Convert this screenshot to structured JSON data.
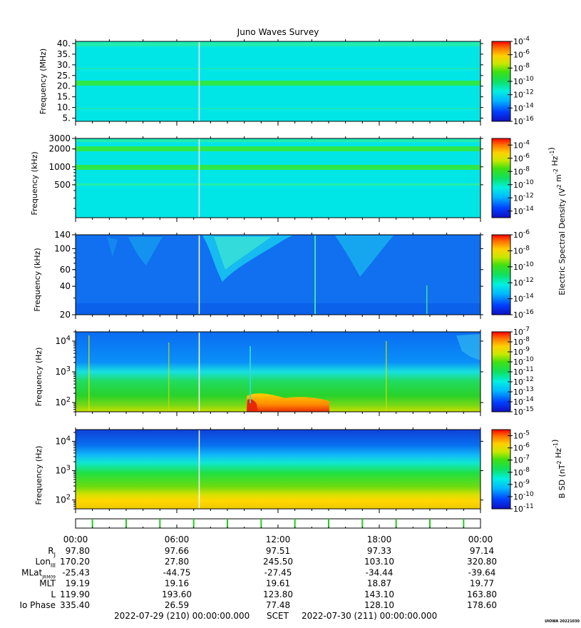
{
  "title": "Juno Waves Survey",
  "credit": "UIOWA 20221030",
  "colors": {
    "background_low": "#00e6e6",
    "band_strong": "#2de84a",
    "band_weak": "#33f08a",
    "marker_white": "#ffffff",
    "orbit_tick_green": "#22cc22"
  },
  "chart_data": [
    {
      "type": "heatmap",
      "id": "panel-1",
      "ylabel": "Frequency (MHz)",
      "yscale": "linear",
      "ylim": [
        3.5,
        41
      ],
      "yticks": [
        "40.",
        "35.",
        "30.",
        "25.",
        "20.",
        "15.",
        "10.",
        "5."
      ],
      "ytick_values": [
        40,
        35,
        30,
        25,
        20,
        15,
        10,
        5
      ],
      "bands": [
        21
      ],
      "colorbar": {
        "scale": "log",
        "range_exp": [
          -16,
          -4
        ],
        "ticks": [
          "10^-4",
          "10^-6",
          "10^-8",
          "10^-10",
          "10^-12",
          "10^-14",
          "10^-16"
        ],
        "tick_exp": [
          -4,
          -6,
          -8,
          -10,
          -12,
          -14,
          -16
        ]
      }
    },
    {
      "type": "heatmap",
      "id": "panel-2",
      "ylabel": "Frequency (kHz)",
      "yscale": "log",
      "ylim": [
        140,
        3000
      ],
      "yticks": [
        "3000",
        "2000",
        "1000",
        "500"
      ],
      "ytick_values": [
        3000,
        2000,
        1000,
        500
      ],
      "bands": [
        2000,
        1000
      ],
      "colorbar": {
        "scale": "log",
        "range_exp": [
          -15,
          -3
        ],
        "ticks": [
          "10^-4",
          "10^-6",
          "10^-8",
          "10^-10",
          "10^-12",
          "10^-14"
        ],
        "tick_exp": [
          -4,
          -6,
          -8,
          -10,
          -12,
          -14
        ]
      }
    },
    {
      "type": "heatmap",
      "id": "panel-3",
      "ylabel": "Frequency (kHz)",
      "yscale": "log",
      "ylim": [
        20,
        140
      ],
      "yticks": [
        "140",
        "100",
        "60",
        "40",
        "20"
      ],
      "ytick_values": [
        140,
        100,
        60,
        40,
        20
      ],
      "bands": [],
      "colorbar": {
        "scale": "log",
        "range_exp": [
          -16,
          -6
        ],
        "ticks": [
          "10^-6",
          "10^-8",
          "10^-10",
          "10^-12",
          "10^-14",
          "10^-16"
        ],
        "tick_exp": [
          -6,
          -8,
          -10,
          -12,
          -14,
          -16
        ]
      }
    },
    {
      "type": "heatmap",
      "id": "panel-4",
      "ylabel": "Frequency (Hz)",
      "yscale": "log",
      "ylim": [
        50,
        20000
      ],
      "yticks": [
        "10^4",
        "10^3",
        "10^2"
      ],
      "ytick_values": [
        10000,
        1000,
        100
      ],
      "bands": [],
      "colorbar": {
        "scale": "log",
        "range_exp": [
          -15,
          -7
        ],
        "ticks": [
          "10^-7",
          "10^-8",
          "10^-9",
          "10^-10",
          "10^-11",
          "10^-12",
          "10^-13",
          "10^-14",
          "10^-15"
        ],
        "tick_exp": [
          -7,
          -8,
          -9,
          -10,
          -11,
          -12,
          -13,
          -14,
          -15
        ]
      }
    },
    {
      "type": "heatmap",
      "id": "panel-5",
      "ylabel": "Frequency (Hz)",
      "yscale": "log",
      "ylim": [
        50,
        25000
      ],
      "yticks": [
        "10^4",
        "10^3",
        "10^2"
      ],
      "ytick_values": [
        10000,
        1000,
        100
      ],
      "bands": [],
      "colorbar": {
        "scale": "log",
        "range_exp": [
          -11,
          -4.5
        ],
        "ticks": [
          "10^-5",
          "10^-6",
          "10^-7",
          "10^-8",
          "10^-9",
          "10^-10",
          "10^-11"
        ],
        "tick_exp": [
          -5,
          -6,
          -7,
          -8,
          -9,
          -10,
          -11
        ]
      }
    }
  ],
  "colorbar_labels": {
    "electric": "Electric Spectral Density (V^2 m^-2 Hz^-1)",
    "magnetic": "B SD (nT^2 Hz^-1)"
  },
  "xaxis": {
    "range_hours": [
      0,
      24
    ],
    "ticks": [
      "00:00",
      "06:00",
      "12:00",
      "18:00",
      "00:00"
    ],
    "tick_hours": [
      0,
      6,
      12,
      18,
      24
    ],
    "marker_hour": 7.33
  },
  "ephemeris": {
    "rows": [
      {
        "label": "R",
        "sub": "J",
        "values": [
          "97.80",
          "97.66",
          "97.51",
          "97.33",
          "97.14"
        ]
      },
      {
        "label": "Lon",
        "sub": "III",
        "values": [
          "170.20",
          "27.80",
          "245.50",
          "103.10",
          "320.80"
        ]
      },
      {
        "label": "MLat",
        "sub": "JRM09",
        "values": [
          "-25.43",
          "-44.75",
          "-27.45",
          "-34.44",
          "-39.64"
        ]
      },
      {
        "label": "MLT",
        "sub": "",
        "values": [
          "19.19",
          "19.16",
          "19.61",
          "18.87",
          "19.77"
        ]
      },
      {
        "label": "L",
        "sub": "",
        "values": [
          "119.90",
          "193.60",
          "123.80",
          "143.10",
          "163.80"
        ]
      },
      {
        "label": "Io Phase",
        "sub": "",
        "values": [
          "335.40",
          "26.59",
          "77.48",
          "128.10",
          "178.60"
        ]
      }
    ]
  },
  "footer": {
    "start": "2022-07-29 (210) 00:00:00.000",
    "scet": "SCET",
    "end": "2022-07-30 (211) 00:00:00.000"
  }
}
